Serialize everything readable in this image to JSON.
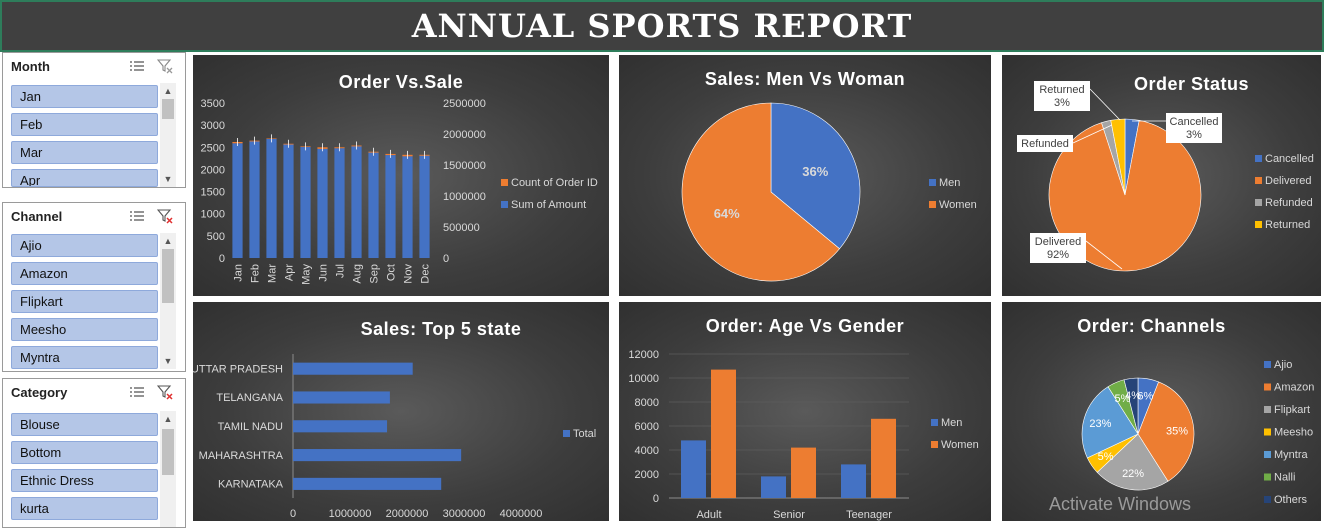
{
  "header": {
    "title": "ANNUAL SPORTS REPORT"
  },
  "watermark": "Activate Windows",
  "slicers": [
    {
      "title": "Month",
      "items": [
        "Jan",
        "Feb",
        "Mar",
        "Apr"
      ]
    },
    {
      "title": "Channel",
      "items": [
        "Ajio",
        "Amazon",
        "Flipkart",
        "Meesho",
        "Myntra"
      ]
    },
    {
      "title": "Category",
      "items": [
        "Blouse",
        "Bottom",
        "Ethnic Dress",
        "kurta"
      ]
    }
  ],
  "colors": {
    "blue": "#4472c4",
    "orange": "#ed7d31",
    "gray": "#a5a5a5",
    "yellow": "#ffc000",
    "lightblue": "#5b9bd5",
    "green": "#70ad47",
    "navy": "#264478"
  },
  "chart_data": [
    {
      "id": "order_vs_sale",
      "type": "bar",
      "title": "Order Vs.Sale",
      "categories": [
        "Jan",
        "Feb",
        "Mar",
        "Apr",
        "May",
        "Jun",
        "Jul",
        "Aug",
        "Sep",
        "Oct",
        "Nov",
        "Dec"
      ],
      "series": [
        {
          "name": "Count of Order ID",
          "axis": "left",
          "values": [
            2620,
            2650,
            2700,
            2580,
            2520,
            2500,
            2500,
            2540,
            2400,
            2350,
            2330,
            2330
          ]
        },
        {
          "name": "Sum of Amount",
          "axis": "right",
          "values": [
            1850000,
            1880000,
            1920000,
            1830000,
            1790000,
            1760000,
            1770000,
            1800000,
            1700000,
            1660000,
            1640000,
            1650000
          ]
        }
      ],
      "ylim": [
        0,
        3500
      ],
      "y_ticks": [
        "3500",
        "3000",
        "2500",
        "2000",
        "1500",
        "1000",
        "500",
        "0"
      ],
      "y2lim": [
        0,
        2500000
      ],
      "y2_ticks": [
        "2500000",
        "2000000",
        "1500000",
        "1000000",
        "500000",
        "0"
      ]
    },
    {
      "id": "sales_men_women",
      "type": "pie",
      "title": "Sales: Men Vs Woman",
      "labels": [
        "Men",
        "Women"
      ],
      "values": [
        36,
        64
      ],
      "data_labels": [
        "36%",
        "64%"
      ]
    },
    {
      "id": "order_status",
      "type": "pie",
      "title": "Order Status",
      "labels": [
        "Cancelled",
        "Delivered",
        "Refunded",
        "Returned"
      ],
      "values": [
        3,
        92,
        2,
        3
      ],
      "callouts": [
        {
          "name": "Cancelled",
          "pct": "3%"
        },
        {
          "name": "Delivered",
          "pct": "92%"
        },
        {
          "name": "Refunded",
          "pct": ""
        },
        {
          "name": "Returned",
          "pct": "3%"
        }
      ]
    },
    {
      "id": "sales_top5_state",
      "type": "bar",
      "orientation": "horizontal",
      "title": "Sales: Top 5 state",
      "categories": [
        "UTTAR PRADESH",
        "TELANGANA",
        "TAMIL NADU",
        "MAHARASHTRA",
        "KARNATAKA"
      ],
      "series": [
        {
          "name": "Total",
          "values": [
            2100000,
            1700000,
            1650000,
            2950000,
            2600000
          ]
        }
      ],
      "xlim": [
        0,
        4000000
      ],
      "x_ticks": [
        "0",
        "1000000",
        "2000000",
        "3000000",
        "4000000"
      ]
    },
    {
      "id": "order_age_gender",
      "type": "bar",
      "title": "Order: Age Vs Gender",
      "categories": [
        "Adult",
        "Senior",
        "Teenager"
      ],
      "series": [
        {
          "name": "Men",
          "values": [
            4800,
            1800,
            2800
          ]
        },
        {
          "name": "Women",
          "values": [
            10700,
            4200,
            6600
          ]
        }
      ],
      "ylim": [
        0,
        12000
      ],
      "y_ticks": [
        "12000",
        "10000",
        "8000",
        "6000",
        "4000",
        "2000",
        "0"
      ]
    },
    {
      "id": "order_channels",
      "type": "pie",
      "title": "Order: Channels",
      "labels": [
        "Ajio",
        "Amazon",
        "Flipkart",
        "Meesho",
        "Myntra",
        "Nalli",
        "Others"
      ],
      "values": [
        6,
        35,
        22,
        5,
        23,
        5,
        4
      ],
      "data_labels": [
        "6%",
        "35%",
        "22%",
        "5%",
        "23%",
        "5%",
        "4%"
      ]
    }
  ]
}
